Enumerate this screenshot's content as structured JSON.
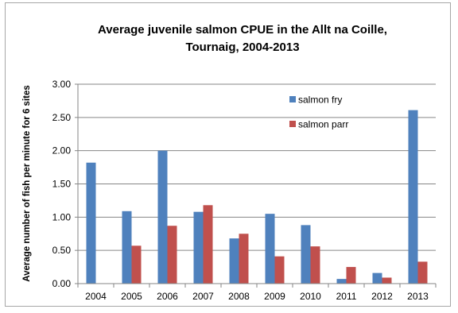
{
  "chart_data": {
    "type": "bar",
    "title_line1": "Average juvenile salmon CPUE  in the Allt na Coille,",
    "title_line2": "Tournaig, 2004-2013",
    "xlabel": "",
    "ylabel": "Average number of fish per minute for 6 sites",
    "ylim": [
      0,
      3.0
    ],
    "y_ticks": [
      "0.00",
      "0.50",
      "1.00",
      "1.50",
      "2.00",
      "2.50",
      "3.00"
    ],
    "categories": [
      "2004",
      "2005",
      "2006",
      "2007",
      "2008",
      "2009",
      "2010",
      "2011",
      "2012",
      "2013"
    ],
    "series": [
      {
        "name": "salmon fry",
        "color": "#4f81bd",
        "values": [
          1.82,
          1.09,
          2.0,
          1.08,
          0.68,
          1.05,
          0.88,
          0.07,
          0.16,
          2.61
        ]
      },
      {
        "name": "salmon parr",
        "color": "#c0504d",
        "values": [
          0.0,
          0.57,
          0.87,
          1.18,
          0.75,
          0.41,
          0.56,
          0.25,
          0.09,
          0.33
        ]
      }
    ],
    "grid": true,
    "legend_position": "top-right"
  }
}
